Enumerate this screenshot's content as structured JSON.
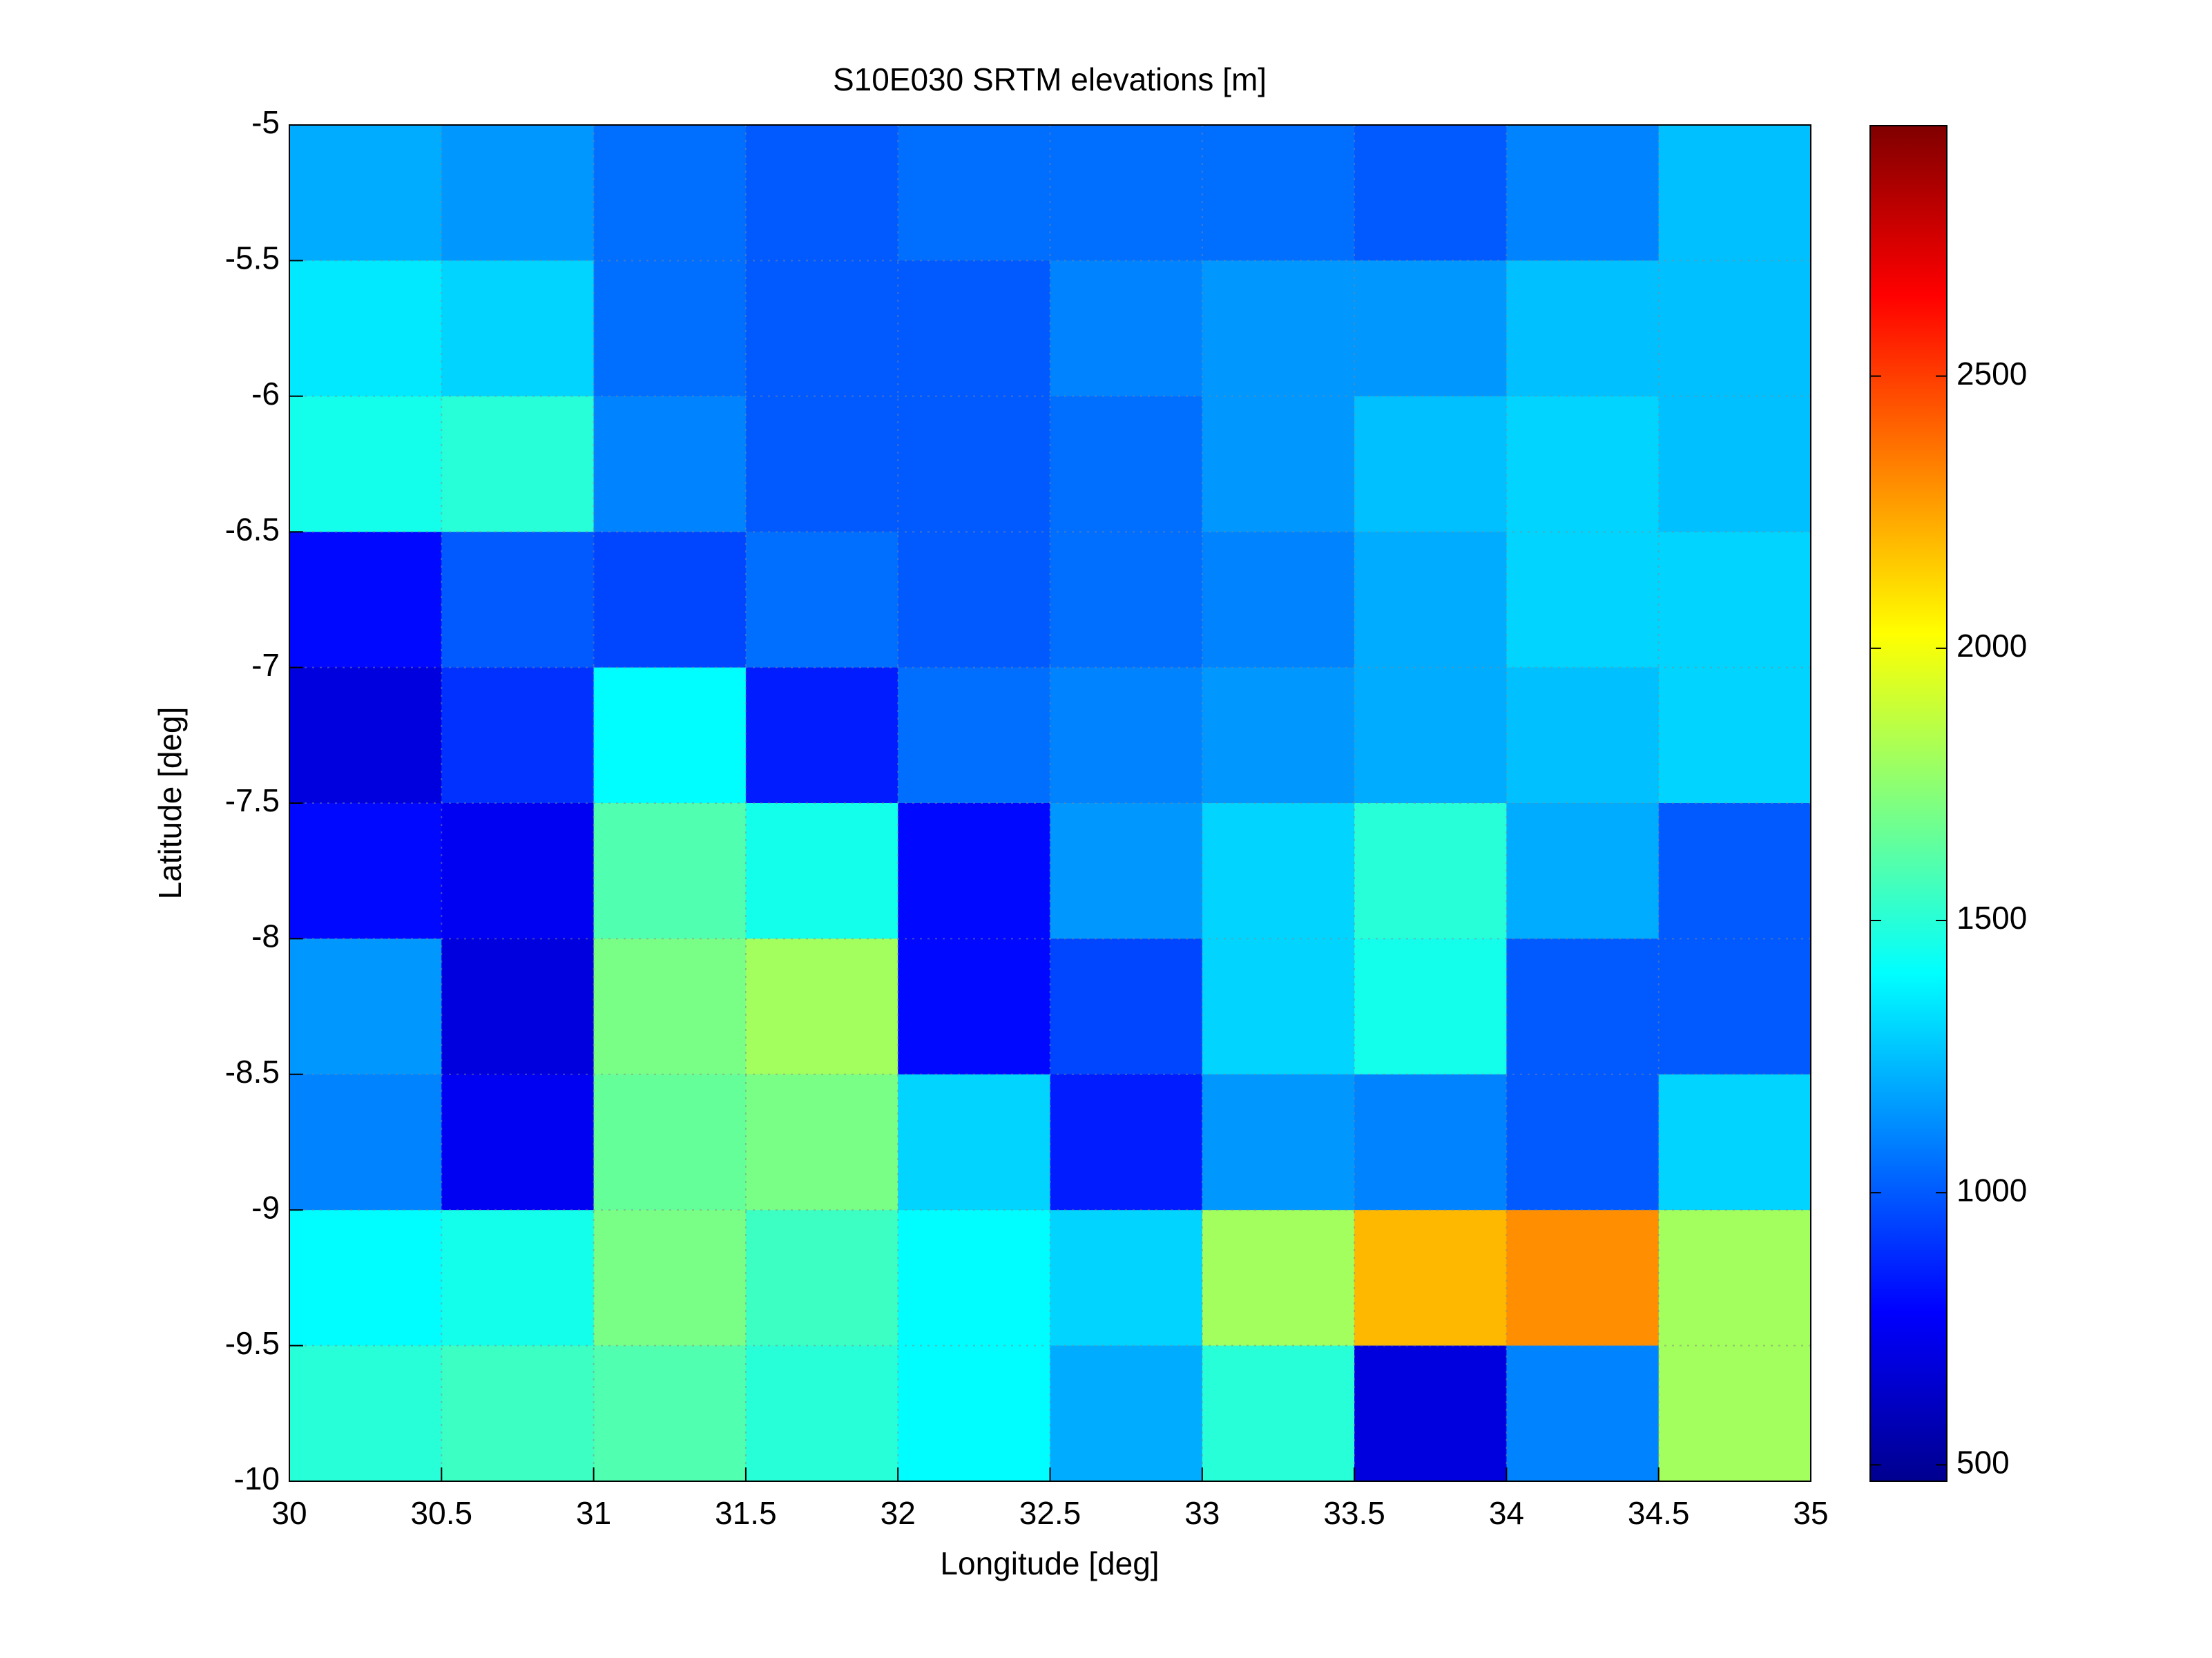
{
  "chart_data": {
    "type": "heatmap",
    "title": "S10E030 SRTM elevations [m]",
    "x_label": "Longitude [deg]",
    "y_label": "Latitude [deg]",
    "xlim": [
      30,
      35
    ],
    "ylim": [
      -10,
      -5
    ],
    "xticks": [
      30,
      30.5,
      31,
      31.5,
      32,
      32.5,
      33,
      33.5,
      34,
      34.5,
      35
    ],
    "yticks": [
      -5,
      -5.5,
      -6,
      -6.5,
      -7,
      -7.5,
      -8,
      -8.5,
      -9,
      -9.5,
      -10
    ],
    "grid": true,
    "colormap": "jet",
    "clim": [
      470,
      2960
    ],
    "colorbar_ticks": [
      500,
      1000,
      1500,
      2000,
      2500
    ],
    "x": [
      30,
      30.5,
      31,
      31.5,
      32,
      32.5,
      33,
      33.5,
      34,
      34.5,
      35
    ],
    "y": [
      -5,
      -5.5,
      -6,
      -6.5,
      -7,
      -7.5,
      -8,
      -8.5,
      -9,
      -9.5,
      -10
    ],
    "values": [
      [
        1200,
        1150,
        1050,
        1000,
        1050,
        1050,
        1050,
        1000,
        1100,
        1250
      ],
      [
        1350,
        1300,
        1050,
        1000,
        1000,
        1100,
        1150,
        1150,
        1250,
        1250
      ],
      [
        1450,
        1500,
        1100,
        1000,
        1000,
        1050,
        1150,
        1250,
        1300,
        1250
      ],
      [
        800,
        1000,
        950,
        1050,
        1000,
        1050,
        1100,
        1200,
        1300,
        1300
      ],
      [
        700,
        900,
        1400,
        850,
        1050,
        1100,
        1150,
        1200,
        1250,
        1300
      ],
      [
        800,
        750,
        1600,
        1450,
        800,
        1150,
        1300,
        1500,
        1200,
        1000
      ],
      [
        1150,
        700,
        1700,
        1800,
        800,
        950,
        1300,
        1450,
        1000,
        1000
      ],
      [
        1100,
        750,
        1650,
        1700,
        1300,
        850,
        1150,
        1100,
        1000,
        1300
      ],
      [
        1400,
        1450,
        1700,
        1550,
        1400,
        1300,
        1800,
        2200,
        2300,
        1800
      ],
      [
        1500,
        1550,
        1600,
        1500,
        1400,
        1200,
        1500,
        700,
        1100,
        1800
      ]
    ]
  }
}
